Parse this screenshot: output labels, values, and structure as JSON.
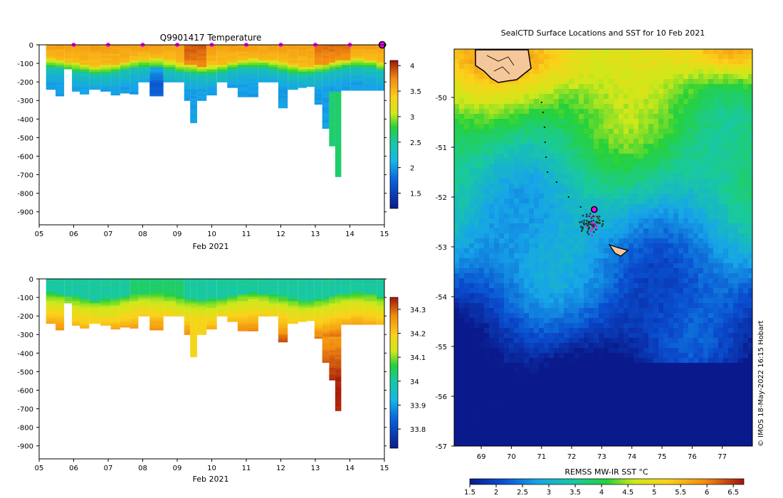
{
  "chart_data": [
    {
      "type": "heatmap",
      "title": "Q9901417  Temperature",
      "xlabel": "Feb 2021",
      "ylabel": "",
      "x_ticks": [
        "05",
        "06",
        "07",
        "08",
        "09",
        "10",
        "11",
        "12",
        "13",
        "14",
        "15"
      ],
      "x_range": [
        5,
        15
      ],
      "y_ticks": [
        0,
        -100,
        -200,
        -300,
        -400,
        -500,
        -600,
        -700,
        -800,
        -900
      ],
      "ylim": [
        -970,
        0
      ],
      "colorbar": {
        "min": 1.2,
        "max": 4.1,
        "ticks": [
          1.5,
          2,
          2.5,
          3,
          3.5,
          4
        ]
      },
      "markers_day": [
        6,
        7,
        8,
        9,
        10,
        11,
        12,
        13,
        14
      ],
      "end_marker_day": 15.0,
      "profiles": [
        {
          "t": 5.35,
          "d": 240
        },
        {
          "t": 5.6,
          "d": 275
        },
        {
          "t": 5.85,
          "d": 130
        },
        {
          "t": 6.05,
          "d": 250
        },
        {
          "t": 6.3,
          "d": 265
        },
        {
          "t": 6.6,
          "d": 240
        },
        {
          "t": 6.95,
          "d": 250
        },
        {
          "t": 7.2,
          "d": 270
        },
        {
          "t": 7.5,
          "d": 260
        },
        {
          "t": 7.75,
          "d": 265
        },
        {
          "t": 8.0,
          "d": 200
        },
        {
          "t": 8.4,
          "d": 275
        },
        {
          "t": 8.8,
          "d": 200
        },
        {
          "t": 9.1,
          "d": 200
        },
        {
          "t": 9.3,
          "d": 300
        },
        {
          "t": 9.45,
          "d": 420
        },
        {
          "t": 9.7,
          "d": 300
        },
        {
          "t": 10.0,
          "d": 270
        },
        {
          "t": 10.3,
          "d": 200
        },
        {
          "t": 10.6,
          "d": 230
        },
        {
          "t": 10.9,
          "d": 280
        },
        {
          "t": 11.2,
          "d": 280
        },
        {
          "t": 11.5,
          "d": 200
        },
        {
          "t": 11.8,
          "d": 200
        },
        {
          "t": 12.05,
          "d": 340
        },
        {
          "t": 12.35,
          "d": 240
        },
        {
          "t": 12.65,
          "d": 230
        },
        {
          "t": 12.85,
          "d": 225
        },
        {
          "t": 13.1,
          "d": 320
        },
        {
          "t": 13.3,
          "d": 450
        },
        {
          "t": 13.5,
          "d": 545
        },
        {
          "t": 13.65,
          "d": 710
        },
        {
          "t": 13.85,
          "d": 245
        },
        {
          "t": 14.2,
          "d": 245
        },
        {
          "t": 14.6,
          "d": 245
        },
        {
          "t": 14.95,
          "d": 245
        }
      ]
    },
    {
      "type": "heatmap",
      "title": "",
      "xlabel": "Feb 2021",
      "ylabel": "",
      "x_ticks": [
        "05",
        "06",
        "07",
        "08",
        "09",
        "10",
        "11",
        "12",
        "13",
        "14",
        "15"
      ],
      "x_range": [
        5,
        15
      ],
      "y_ticks": [
        0,
        -100,
        -200,
        -300,
        -400,
        -500,
        -600,
        -700,
        -800,
        -900
      ],
      "ylim": [
        -970,
        0
      ],
      "colorbar": {
        "min": 33.72,
        "max": 34.35,
        "ticks": [
          33.8,
          33.9,
          34,
          34.1,
          34.2,
          34.3
        ]
      }
    },
    {
      "type": "heatmap",
      "title": "SealCTD Surface Locations and SST for 10 Feb 2021",
      "xlabel": "",
      "ylabel": "",
      "x_ticks": [
        "69",
        "70",
        "71",
        "72",
        "73",
        "74",
        "75",
        "76",
        "77"
      ],
      "x_range": [
        68.1,
        78.0
      ],
      "y_ticks": [
        "-50",
        "-51",
        "-52",
        "-53",
        "-54",
        "-55",
        "-56",
        "-57"
      ],
      "ylim": [
        -57.0,
        -49.03
      ],
      "colorbar": {
        "label": "REMSS MW-IR SST °C",
        "min": 1.5,
        "max": 6.7,
        "ticks": [
          "1.5",
          "2",
          "2.5",
          "3",
          "3.5",
          "4",
          "4.5",
          "5",
          "5.5",
          "6",
          "6.5"
        ]
      },
      "track": [
        {
          "lon": 71.0,
          "lat": -50.1
        },
        {
          "lon": 71.05,
          "lat": -50.3
        },
        {
          "lon": 71.1,
          "lat": -50.6
        },
        {
          "lon": 71.12,
          "lat": -50.9
        },
        {
          "lon": 71.15,
          "lat": -51.2
        },
        {
          "lon": 71.2,
          "lat": -51.5
        },
        {
          "lon": 71.5,
          "lat": -51.7
        },
        {
          "lon": 71.9,
          "lat": -52.0
        },
        {
          "lon": 72.3,
          "lat": -52.2
        },
        {
          "lon": 72.5,
          "lat": -52.35
        },
        {
          "lon": 72.6,
          "lat": -52.5
        },
        {
          "lon": 72.7,
          "lat": -52.6
        }
      ],
      "current_position": {
        "lon": 72.75,
        "lat": -52.25
      },
      "credit": "© IMOS 18-May-2022 16:15 Hobart"
    }
  ]
}
